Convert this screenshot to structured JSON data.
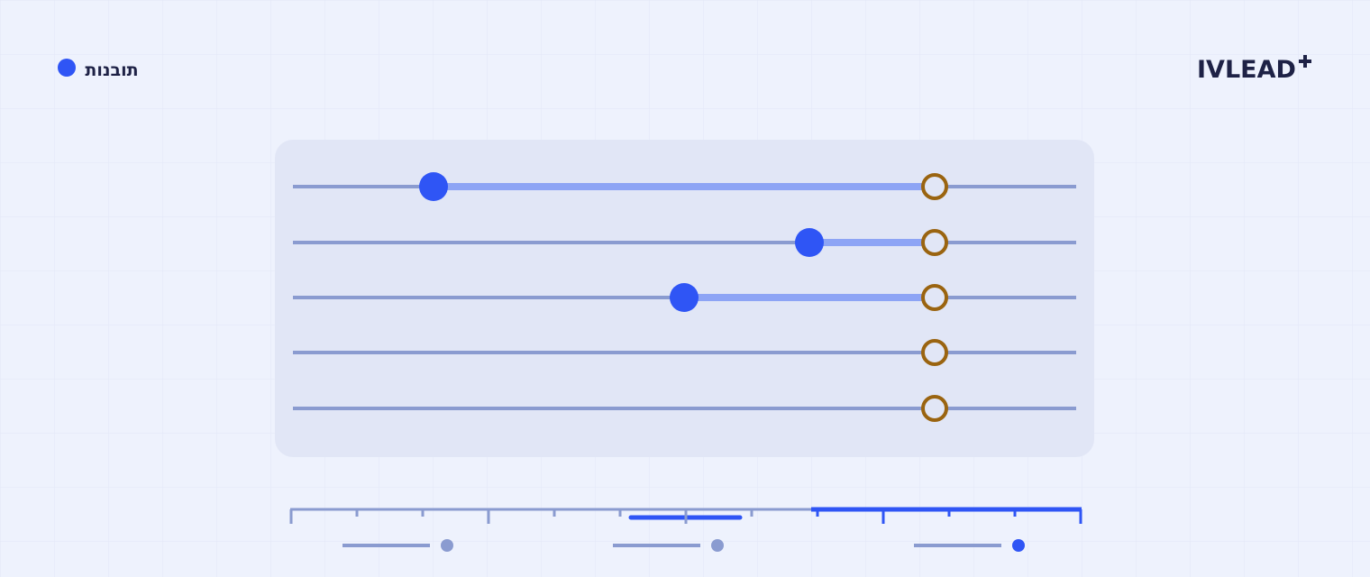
{
  "header": {
    "logo": "IVLEAD",
    "legend": "תובנות"
  }
}
